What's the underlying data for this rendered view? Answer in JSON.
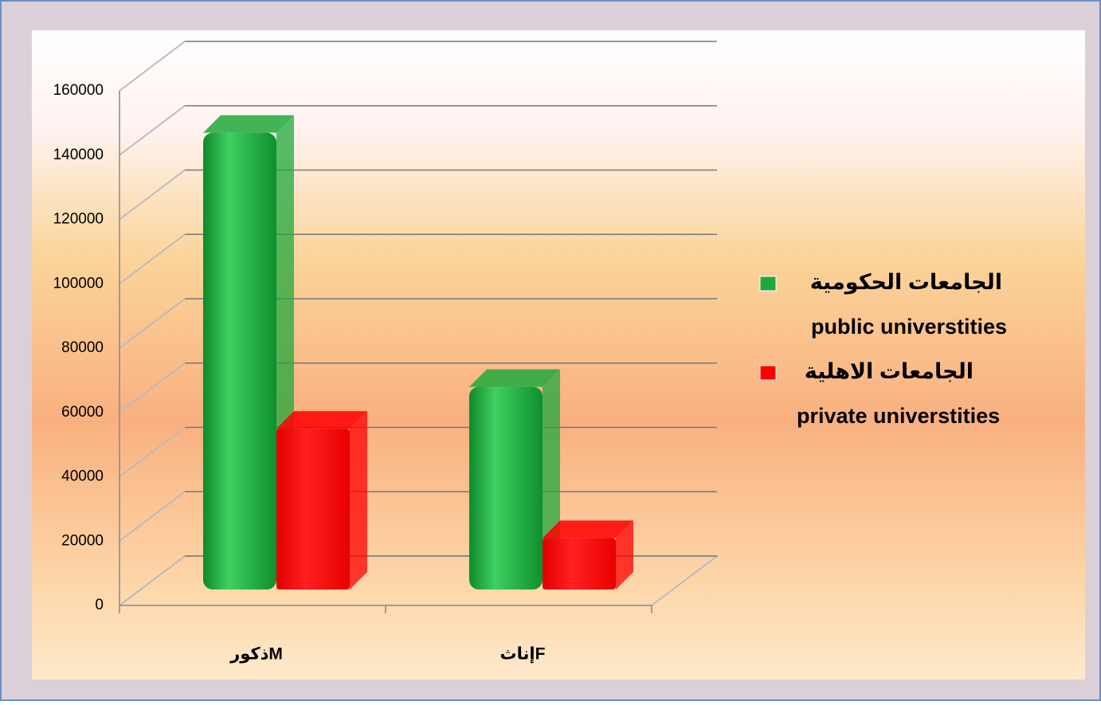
{
  "chart_data": {
    "type": "bar3d",
    "categories": [
      "ذكورM",
      "إناثF"
    ],
    "series": [
      {
        "name": "الجامعات الحكومية",
        "name_en": "public universtities",
        "color": "#1fa83c",
        "values": [
          142000,
          63000
        ]
      },
      {
        "name": "الجامعات الاهلية",
        "name_en": "private universtities",
        "color": "#ff0000",
        "values": [
          50000,
          16000
        ]
      }
    ],
    "ylim": [
      0,
      160000
    ],
    "yticks": [
      0,
      20000,
      40000,
      60000,
      80000,
      100000,
      120000,
      140000,
      160000
    ],
    "grid": true
  }
}
